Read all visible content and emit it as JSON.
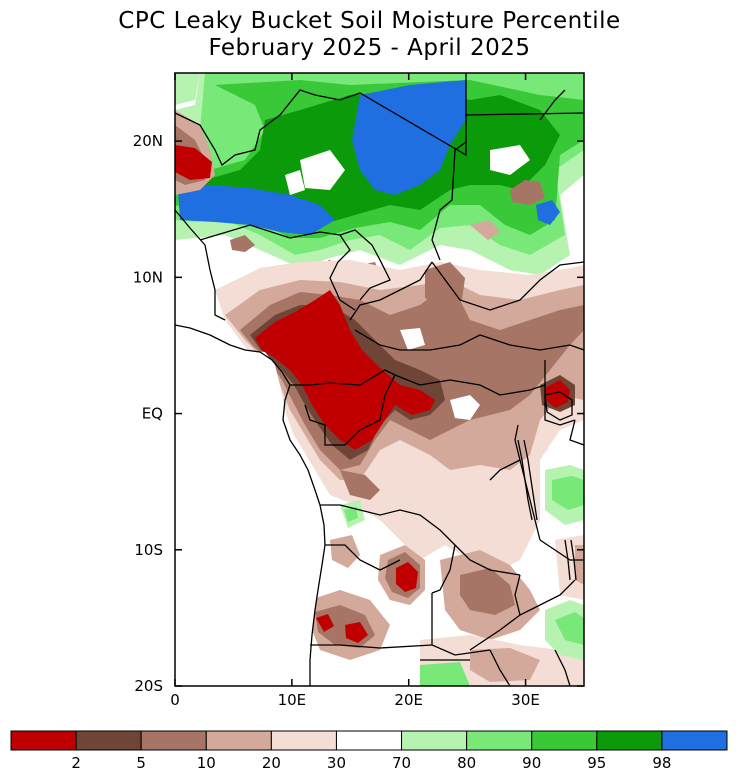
{
  "title": {
    "line1": "CPC Leaky Bucket Soil Moisture Percentile",
    "line2": "February 2025 - April 2025"
  },
  "map": {
    "lon_range": [
      0,
      35
    ],
    "lat_range": [
      -20,
      25
    ],
    "lat_ticks": [
      {
        "value": 20,
        "label": "20N"
      },
      {
        "value": 10,
        "label": "10N"
      },
      {
        "value": 0,
        "label": "EQ"
      },
      {
        "value": -10,
        "label": "10S"
      },
      {
        "value": -20,
        "label": "20S"
      }
    ],
    "lon_ticks": [
      {
        "value": 0,
        "label": "0"
      },
      {
        "value": 10,
        "label": "10E"
      },
      {
        "value": 20,
        "label": "20E"
      },
      {
        "value": 30,
        "label": "30E"
      }
    ]
  },
  "colorbar": {
    "colors": [
      "#c00000",
      "#6e4537",
      "#a77565",
      "#d3a99b",
      "#f3ddd5",
      "#ffffff",
      "#b6f2b0",
      "#78e878",
      "#38c838",
      "#0a9a0a",
      "#1f6fe0"
    ],
    "labels": [
      "2",
      "5",
      "10",
      "20",
      "30",
      "70",
      "80",
      "90",
      "95",
      "98"
    ]
  },
  "palette": {
    "dry_extreme": "#c00000",
    "dry_strong": "#6e4537",
    "dry_moderate": "#a77565",
    "dry_light": "#d3a99b",
    "dry_slight": "#f3ddd5",
    "normal": "#ffffff",
    "wet_slight": "#b6f2b0",
    "wet_light": "#78e878",
    "wet_moderate": "#38c838",
    "wet_strong": "#0a9a0a",
    "wet_extreme": "#1f6fe0"
  }
}
